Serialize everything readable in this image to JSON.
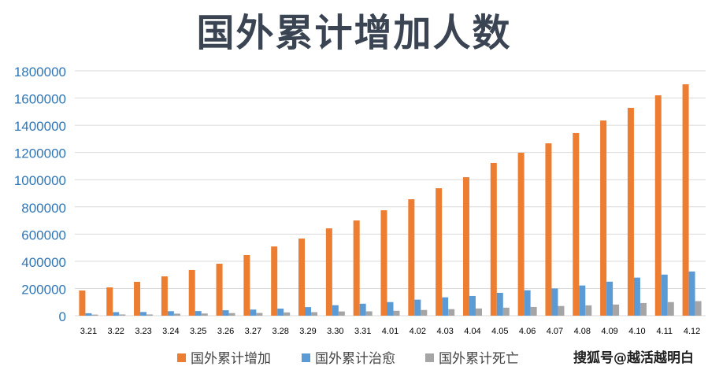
{
  "chart_data": {
    "type": "bar",
    "title": "国外累计增加人数",
    "categories": [
      "3.21",
      "3.22",
      "3.23",
      "3.24",
      "3.25",
      "3.26",
      "3.27",
      "3.28",
      "3.29",
      "3.30",
      "3.31",
      "4.01",
      "4.02",
      "4.03",
      "4.04",
      "4.05",
      "4.06",
      "4.07",
      "4.08",
      "4.09",
      "4.10",
      "4.11",
      "4.12"
    ],
    "series": [
      {
        "name": "国外累计增加",
        "color": "#ed7d31",
        "values": [
          185000,
          208000,
          249000,
          289000,
          336000,
          382000,
          446000,
          509000,
          567000,
          642000,
          700000,
          775000,
          856000,
          937000,
          1018000,
          1123000,
          1198000,
          1267000,
          1343000,
          1435000,
          1528000,
          1620000,
          1701000
        ]
      },
      {
        "name": "国外累计治愈",
        "color": "#5b9bd5",
        "values": [
          18000,
          26000,
          27000,
          33000,
          34000,
          40000,
          45000,
          52000,
          63000,
          77000,
          88000,
          100000,
          118000,
          135000,
          145000,
          168000,
          187000,
          200000,
          222000,
          250000,
          280000,
          302000,
          325000
        ]
      },
      {
        "name": "国外累计死亡",
        "color": "#a5a5a5",
        "values": [
          8000,
          9000,
          9000,
          15000,
          16000,
          19000,
          20000,
          24000,
          26000,
          31000,
          32000,
          36000,
          42000,
          48000,
          53000,
          59000,
          64000,
          71000,
          76000,
          82000,
          93000,
          100000,
          107000
        ]
      }
    ],
    "ylim": [
      0,
      1800000
    ],
    "yticks": [
      "0",
      "200000",
      "400000",
      "600000",
      "800000",
      "1000000",
      "1200000",
      "1400000",
      "1600000",
      "1800000"
    ],
    "grid": true,
    "legend": "bottom"
  },
  "watermark": "搜狐号@越活越明白"
}
